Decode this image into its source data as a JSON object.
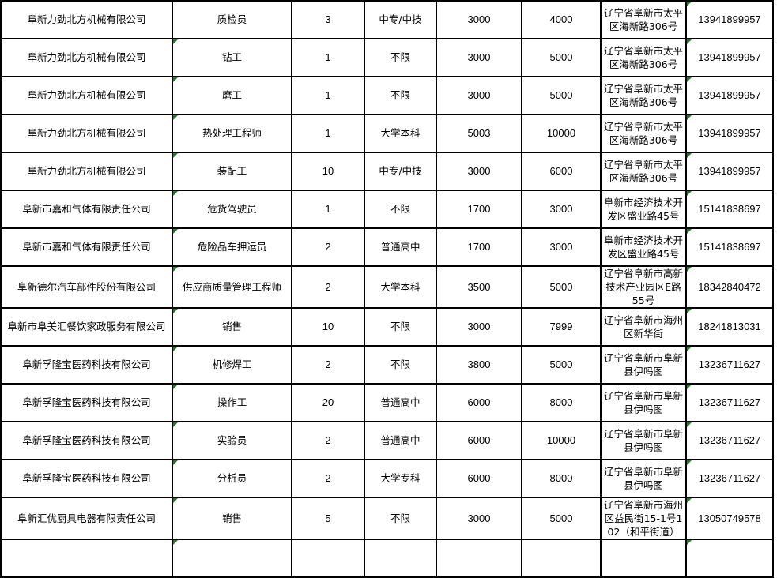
{
  "rows": [
    [
      "阜新力劲北方机械有限公司",
      "质检员",
      "3",
      "中专/中技",
      "3000",
      "4000",
      "辽宁省阜新市太平区海新路306号",
      "13941899957"
    ],
    [
      "阜新力劲北方机械有限公司",
      "钻工",
      "1",
      "不限",
      "3000",
      "5000",
      "辽宁省阜新市太平区海新路306号",
      "13941899957"
    ],
    [
      "阜新力劲北方机械有限公司",
      "磨工",
      "1",
      "不限",
      "3000",
      "5000",
      "辽宁省阜新市太平区海新路306号",
      "13941899957"
    ],
    [
      "阜新力劲北方机械有限公司",
      "热处理工程师",
      "1",
      "大学本科",
      "5003",
      "10000",
      "辽宁省阜新市太平区海新路306号",
      "13941899957"
    ],
    [
      "阜新力劲北方机械有限公司",
      "装配工",
      "10",
      "中专/中技",
      "3000",
      "6000",
      "辽宁省阜新市太平区海新路306号",
      "13941899957"
    ],
    [
      "阜新市嘉和气体有限责任公司",
      "危货驾驶员",
      "1",
      "不限",
      "1700",
      "3000",
      "阜新市经济技术开发区盛业路45号",
      "15141838697"
    ],
    [
      "阜新市嘉和气体有限责任公司",
      "危险品车押运员",
      "2",
      "普通高中",
      "1700",
      "3000",
      "阜新市经济技术开发区盛业路45号",
      "15141838697"
    ],
    [
      "阜新德尔汽车部件股份有限公司",
      "供应商质量管理工程师",
      "2",
      "大学本科",
      "3500",
      "5000",
      "辽宁省阜新市高新技术产业园区E路55号",
      "18342840472"
    ],
    [
      "阜新市阜美汇餐饮家政服务有限公司",
      "销售",
      "10",
      "不限",
      "3000",
      "7999",
      "辽宁省阜新市海州区新华街",
      "18241813031"
    ],
    [
      "阜新孚隆宝医药科技有限公司",
      "机修焊工",
      "2",
      "不限",
      "3800",
      "5000",
      "辽宁省阜新市阜新县伊吗图",
      "13236711627"
    ],
    [
      "阜新孚隆宝医药科技有限公司",
      "操作工",
      "20",
      "普通高中",
      "6000",
      "8000",
      "辽宁省阜新市阜新县伊吗图",
      "13236711627"
    ],
    [
      "阜新孚隆宝医药科技有限公司",
      "实验员",
      "2",
      "普通高中",
      "6000",
      "10000",
      "辽宁省阜新市阜新县伊吗图",
      "13236711627"
    ],
    [
      "阜新孚隆宝医药科技有限公司",
      "分析员",
      "2",
      "大学专科",
      "6000",
      "8000",
      "辽宁省阜新市阜新县伊吗图",
      "13236711627"
    ],
    [
      "阜新汇优厨具电器有限责任公司",
      "销售",
      "5",
      "不限",
      "3000",
      "5000",
      "辽宁省阜新市海州区益民街15-1号102（和平街道）",
      "13050749578"
    ]
  ],
  "colors": {
    "border": "#000000",
    "comment_marker": "#1e7b1e",
    "grid": "#d4d4d4"
  }
}
